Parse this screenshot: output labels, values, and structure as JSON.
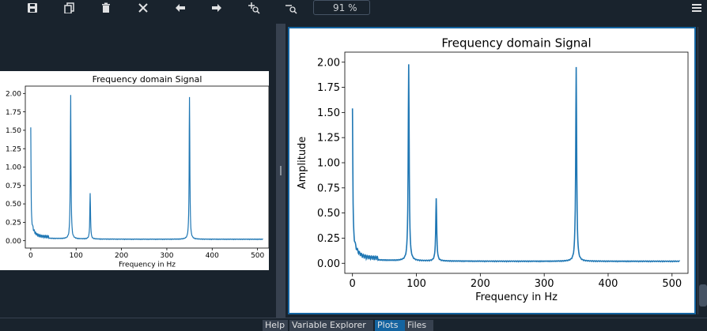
{
  "toolbar": {
    "buttons": [
      {
        "name": "save-plot-icon"
      },
      {
        "name": "copy-plot-icon"
      },
      {
        "name": "delete-plot-icon"
      },
      {
        "name": "delete-all-plots-icon"
      },
      {
        "name": "previous-plot-icon"
      },
      {
        "name": "next-plot-icon"
      },
      {
        "name": "zoom-in-icon"
      },
      {
        "name": "zoom-out-icon"
      }
    ],
    "zoom_value": "91 %",
    "menu_icon": "hamburger-menu-icon"
  },
  "tabs": [
    {
      "label": "Help",
      "active": false
    },
    {
      "label": "Variable Explorer",
      "active": false
    },
    {
      "label": "Plots",
      "active": true
    },
    {
      "label": "Files",
      "active": false
    }
  ],
  "colors": {
    "line": "#1f77b4",
    "active_border": "#1464a0",
    "background": "#19232d"
  },
  "chart_data": [
    {
      "type": "line",
      "title": "Frequency domain Signal",
      "xlabel": "Frequency in Hz",
      "ylabel": "",
      "xlim": [
        -12,
        525
      ],
      "ylim": [
        -0.1,
        2.1
      ],
      "x_ticks": [
        0,
        100,
        200,
        300,
        400,
        500
      ],
      "y_ticks": [
        0.0,
        0.25,
        0.5,
        0.75,
        1.0,
        1.25,
        1.5,
        1.75,
        2.0
      ],
      "peaks": [
        {
          "x": 0,
          "y": 1.33
        },
        {
          "x": 88,
          "y": 2.0
        },
        {
          "x": 131,
          "y": 0.67
        },
        {
          "x": 350,
          "y": 1.98
        }
      ],
      "x_end": 512
    },
    {
      "type": "line",
      "title": "Frequency domain Signal",
      "xlabel": "Frequency in Hz",
      "ylabel": "Amplitude",
      "xlim": [
        -12,
        525
      ],
      "ylim": [
        -0.1,
        2.1
      ],
      "x_ticks": [
        0,
        100,
        200,
        300,
        400,
        500
      ],
      "y_ticks": [
        0.0,
        0.25,
        0.5,
        0.75,
        1.0,
        1.25,
        1.5,
        1.75,
        2.0
      ],
      "peaks": [
        {
          "x": 0,
          "y": 1.33
        },
        {
          "x": 88,
          "y": 2.0
        },
        {
          "x": 131,
          "y": 0.67
        },
        {
          "x": 350,
          "y": 1.98
        }
      ],
      "x_end": 512
    }
  ]
}
